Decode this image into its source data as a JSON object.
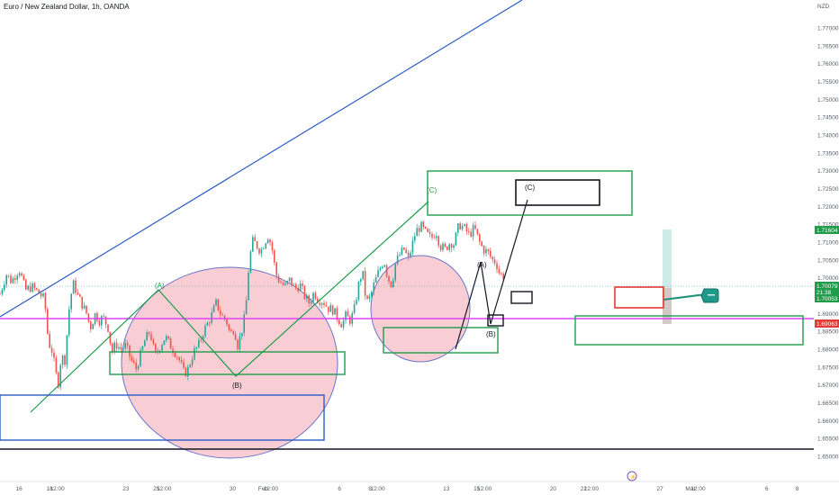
{
  "chart_data": {
    "type": "candlestick",
    "title": "Euro / New Zealand Dollar, 1h, OANDA",
    "currency": "NZD",
    "ylim": [
      1.65,
      1.78
    ],
    "ytick_labels": [
      "1.77000",
      "1.76500",
      "1.76000",
      "1.75500",
      "1.75000",
      "1.74500",
      "1.74000",
      "1.73500",
      "1.73000",
      "1.72500",
      "1.72000",
      "1.71500",
      "1.71000",
      "1.70500",
      "1.70000",
      "1.69500",
      "1.69000",
      "1.68500",
      "1.68000",
      "1.67500",
      "1.67000",
      "1.66500",
      "1.66000",
      "1.65500",
      "1.65000"
    ],
    "ytick_values": [
      1.77,
      1.765,
      1.76,
      1.755,
      1.75,
      1.745,
      1.74,
      1.735,
      1.73,
      1.725,
      1.72,
      1.715,
      1.71,
      1.705,
      1.7,
      1.695,
      1.69,
      1.685,
      1.68,
      1.675,
      1.67,
      1.665,
      1.66,
      1.655,
      1.65
    ],
    "xtick_labels": [
      "16",
      "18",
      "12:00",
      "23",
      "25",
      "12:00",
      "30",
      "Feb",
      "12:00",
      "6",
      "8",
      "12:00",
      "13",
      "15",
      "12:00",
      "20",
      "22",
      "12:00",
      "27",
      "Mar",
      "12:00",
      "6",
      "8"
    ],
    "xtick_hours": [
      0,
      48,
      60,
      168,
      216,
      228,
      336,
      384,
      396,
      504,
      552,
      564,
      672,
      720,
      732,
      840,
      888,
      900,
      1008,
      1056,
      1068,
      1176,
      1224
    ],
    "x_start_hour": -30,
    "x_end_hour": 1250,
    "price_labels": {
      "upper": "1.71604",
      "current": "1.70079",
      "countdown": "21:38",
      "lower_current": "1.70053",
      "level": "1.69063"
    },
    "price_values": {
      "upper": 1.71604,
      "current": 1.70079,
      "lower_current": 1.70053,
      "level": 1.69063
    },
    "closes_path": [
      [
        -30,
        1.6955
      ],
      [
        -20,
        1.701
      ],
      [
        -12,
        1.699
      ],
      [
        0,
        1.7025
      ],
      [
        10,
        1.6965
      ],
      [
        20,
        1.6975
      ],
      [
        30,
        1.696
      ],
      [
        40,
        1.694
      ],
      [
        46,
        1.682
      ],
      [
        52,
        1.6795
      ],
      [
        58,
        1.673
      ],
      [
        62,
        1.6705
      ],
      [
        66,
        1.678
      ],
      [
        72,
        1.677
      ],
      [
        80,
        1.694
      ],
      [
        86,
        1.6985
      ],
      [
        92,
        1.695
      ],
      [
        98,
        1.693
      ],
      [
        106,
        1.69
      ],
      [
        112,
        1.686
      ],
      [
        120,
        1.69
      ],
      [
        126,
        1.688
      ],
      [
        132,
        1.689
      ],
      [
        140,
        1.686
      ],
      [
        146,
        1.679
      ],
      [
        152,
        1.6815
      ],
      [
        160,
        1.68
      ],
      [
        168,
        1.681
      ],
      [
        176,
        1.677
      ],
      [
        184,
        1.6745
      ],
      [
        192,
        1.679
      ],
      [
        198,
        1.6825
      ],
      [
        206,
        1.685
      ],
      [
        214,
        1.678
      ],
      [
        222,
        1.681
      ],
      [
        230,
        1.6835
      ],
      [
        238,
        1.681
      ],
      [
        246,
        1.679
      ],
      [
        252,
        1.677
      ],
      [
        260,
        1.673
      ],
      [
        266,
        1.6745
      ],
      [
        274,
        1.679
      ],
      [
        282,
        1.681
      ],
      [
        290,
        1.685
      ],
      [
        296,
        1.687
      ],
      [
        304,
        1.69
      ],
      [
        310,
        1.693
      ],
      [
        318,
        1.6895
      ],
      [
        326,
        1.688
      ],
      [
        332,
        1.684
      ],
      [
        338,
        1.686
      ],
      [
        344,
        1.681
      ],
      [
        350,
        1.685
      ],
      [
        356,
        1.69
      ],
      [
        362,
        1.705
      ],
      [
        368,
        1.7105
      ],
      [
        374,
        1.709
      ],
      [
        380,
        1.7075
      ],
      [
        386,
        1.71
      ],
      [
        392,
        1.712
      ],
      [
        398,
        1.708
      ],
      [
        404,
        1.701
      ],
      [
        410,
        1.699
      ],
      [
        418,
        1.6975
      ],
      [
        426,
        1.6995
      ],
      [
        434,
        1.697
      ],
      [
        442,
        1.698
      ],
      [
        450,
        1.6945
      ],
      [
        456,
        1.693
      ],
      [
        464,
        1.696
      ],
      [
        470,
        1.694
      ],
      [
        478,
        1.6935
      ],
      [
        486,
        1.6915
      ],
      [
        494,
        1.691
      ],
      [
        500,
        1.689
      ],
      [
        508,
        1.687
      ],
      [
        514,
        1.6895
      ],
      [
        520,
        1.688
      ],
      [
        526,
        1.69
      ],
      [
        534,
        1.698
      ],
      [
        540,
        1.702
      ],
      [
        546,
        1.693
      ],
      [
        552,
        1.6945
      ],
      [
        558,
        1.698
      ],
      [
        566,
        1.702
      ],
      [
        574,
        1.705
      ],
      [
        580,
        1.7
      ],
      [
        586,
        1.698
      ],
      [
        592,
        1.704
      ],
      [
        600,
        1.707
      ],
      [
        606,
        1.708
      ],
      [
        612,
        1.705
      ],
      [
        618,
        1.709
      ],
      [
        624,
        1.713
      ],
      [
        632,
        1.7145
      ],
      [
        640,
        1.7125
      ],
      [
        648,
        1.711
      ],
      [
        656,
        1.713
      ],
      [
        662,
        1.709
      ],
      [
        670,
        1.708
      ],
      [
        678,
        1.71
      ],
      [
        684,
        1.7095
      ],
      [
        692,
        1.715
      ],
      [
        700,
        1.714
      ],
      [
        708,
        1.712
      ],
      [
        716,
        1.714
      ],
      [
        724,
        1.71
      ],
      [
        730,
        1.708
      ],
      [
        738,
        1.707
      ],
      [
        744,
        1.705
      ],
      [
        750,
        1.7045
      ],
      [
        756,
        1.701
      ],
      [
        762,
        1.7005
      ]
    ]
  },
  "annotations": {
    "wave_a1": "(A)",
    "wave_b1": "(B)",
    "wave_c1": "(C)",
    "wave_a2": "(A)",
    "wave_b2": "(B)",
    "wave_c2": "(C)",
    "event_marker": "⚡"
  },
  "colors": {
    "bull": "#26a69a",
    "bear": "#ef5350",
    "green_line": "#1e9c4a",
    "blue_line": "#2c5cc5",
    "magenta_line": "#e040fb",
    "ellipse_fill": "#f7c6cc",
    "ellipse_stroke": "#6b74c9",
    "red_box": "#e53935",
    "black": "#131722",
    "label_blue": "#2962ff",
    "label_green": "#1e9c4a",
    "label_red": "#e53935"
  }
}
